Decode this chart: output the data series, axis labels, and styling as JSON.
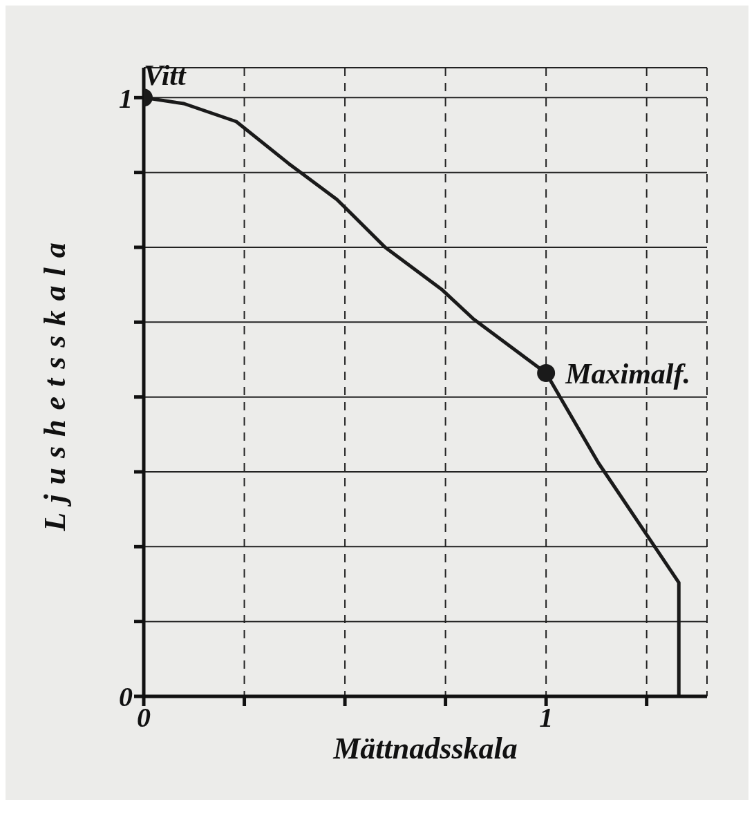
{
  "chart_data": {
    "type": "line",
    "xlabel": "Mättnadsskala",
    "ylabel": "Ljushetsskala",
    "xlim": [
      0,
      1.4
    ],
    "ylim": [
      0,
      1.05
    ],
    "xticks": [
      0,
      {
        "value": 0.25,
        "label": null
      },
      {
        "value": 0.5,
        "label": null
      },
      {
        "value": 0.75,
        "label": null
      },
      1,
      {
        "value": 1.25,
        "label": null
      }
    ],
    "yticks": [
      0,
      {
        "value": 0.125,
        "label": null
      },
      {
        "value": 0.25,
        "label": null
      },
      {
        "value": 0.375,
        "label": null
      },
      {
        "value": 0.5,
        "label": null
      },
      {
        "value": 0.625,
        "label": null
      },
      {
        "value": 0.75,
        "label": null
      },
      {
        "value": 0.875,
        "label": null
      },
      1
    ],
    "grid": true,
    "series": [
      {
        "color": "#1a1a1a",
        "marker": "none",
        "x": [
          0,
          0.1,
          0.23,
          0.36,
          0.48,
          0.6,
          0.74,
          0.82,
          1,
          1.13,
          1.26,
          1.33,
          1.33
        ],
        "values": [
          1,
          0.99,
          0.96,
          0.89,
          0.83,
          0.75,
          0.68,
          0.63,
          0.54,
          0.39,
          0.26,
          0.19,
          0
        ]
      },
      {
        "type": "scatter",
        "color": "#1a1a1a",
        "marker": "circle",
        "x": [
          0,
          1
        ],
        "values": [
          1,
          0.54
        ]
      }
    ],
    "annotations": [
      {
        "text": "Vitt",
        "x": 0,
        "y": 1
      },
      {
        "text": "Maximalf.",
        "x": 1,
        "y": 0.54
      }
    ]
  }
}
